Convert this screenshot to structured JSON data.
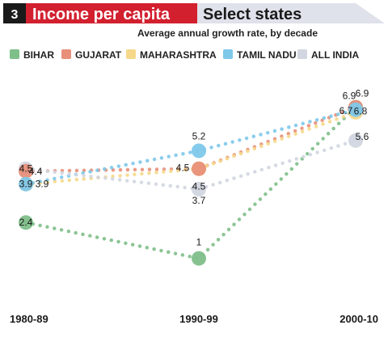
{
  "chart_data": {
    "type": "line",
    "number": "3",
    "title": "Income per capita",
    "title_suffix": "Select states",
    "subtitle": "Average annual growth rate, by decade",
    "categories": [
      "1980-89",
      "1990-99",
      "2000-10"
    ],
    "series": [
      {
        "name": "BIHAR",
        "color": "#7fbf8a",
        "values": [
          2.4,
          1,
          6.9
        ]
      },
      {
        "name": "GUJARAT",
        "color": "#e8907a",
        "values": [
          4.4,
          4.5,
          6.9
        ]
      },
      {
        "name": "MAHARASHTRA",
        "color": "#f5d88a",
        "values": [
          3.9,
          4.5,
          6.7
        ]
      },
      {
        "name": "TAMIL NADU",
        "color": "#7ec8ea",
        "values": [
          3.9,
          5.2,
          6.8
        ]
      },
      {
        "name": "ALL INDIA",
        "color": "#d2d6e0",
        "values": [
          4.5,
          3.7,
          5.6
        ]
      }
    ],
    "legend_position": "top",
    "grid": false
  },
  "colors": {
    "title_band": "#d2202f",
    "number_box": "#1a1a1a",
    "title_tail": "#dfe2ea"
  }
}
